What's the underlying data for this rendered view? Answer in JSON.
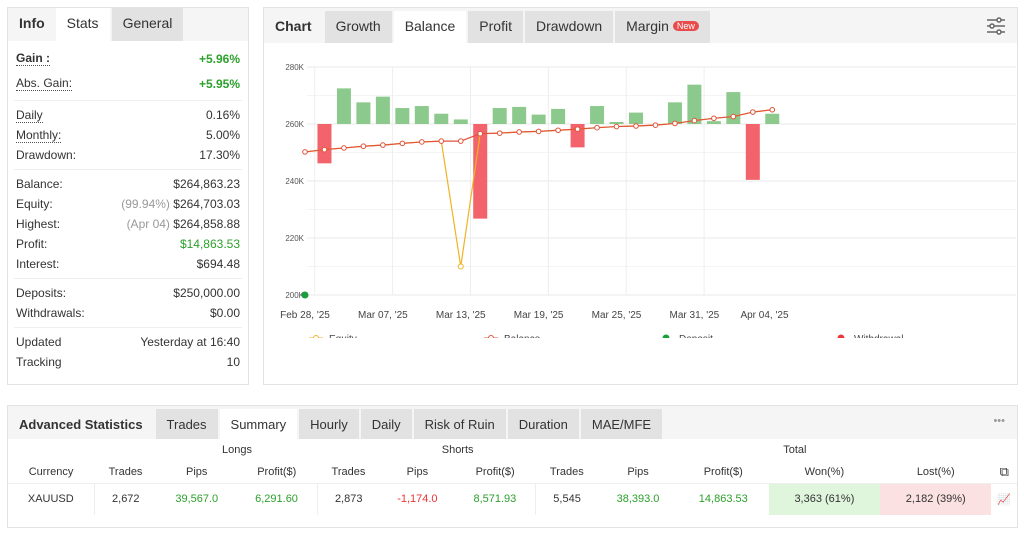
{
  "left": {
    "tabs": [
      "Info",
      "Stats",
      "General"
    ],
    "groups": [
      [
        {
          "label": "Gain :",
          "value": "+5.96%",
          "cls": "green",
          "bold": true
        },
        {
          "label": "Abs. Gain:",
          "value": "+5.95%",
          "cls": "green"
        }
      ],
      [
        {
          "label": "Daily",
          "value": "0.16%"
        },
        {
          "label": "Monthly:",
          "value": "5.00%"
        },
        {
          "label": "Drawdown:",
          "value": "17.30%"
        }
      ],
      [
        {
          "label": "Balance:",
          "value": "$264,863.23"
        },
        {
          "label": "Equity:",
          "pre": "(99.94%)",
          "value": "$264,703.03"
        },
        {
          "label": "Highest:",
          "pre": "(Apr 04)",
          "value": "$264,858.88"
        },
        {
          "label": "Profit:",
          "value": "$14,863.53",
          "cls": "green"
        },
        {
          "label": "Interest:",
          "value": "$694.48"
        }
      ],
      [
        {
          "label": "Deposits:",
          "value": "$250,000.00"
        },
        {
          "label": "Withdrawals:",
          "value": "$0.00"
        }
      ],
      [
        {
          "label": "Updated",
          "value": "Yesterday at 16:40"
        },
        {
          "label": "Tracking",
          "value": "10"
        }
      ]
    ]
  },
  "chart_panel": {
    "title": "Chart",
    "tabs": [
      "Growth",
      "Balance",
      "Profit",
      "Drawdown",
      "Margin"
    ],
    "active_tab": "Balance",
    "new_badge": "New"
  },
  "chart_data": {
    "type": "line",
    "ylim": [
      200,
      280
    ],
    "y_unit": "K",
    "yticks": [
      "280K",
      "260K",
      "240K",
      "220K",
      "200K"
    ],
    "xticks": [
      {
        "i": 0,
        "label": "Feb 28, '25"
      },
      {
        "i": 4,
        "label": "Mar 07, '25"
      },
      {
        "i": 8,
        "label": "Mar 13, '25"
      },
      {
        "i": 12,
        "label": "Mar 19, '25"
      },
      {
        "i": 16,
        "label": "Mar 25, '25"
      },
      {
        "i": 20,
        "label": "Mar 31, '25"
      },
      {
        "i": 23.6,
        "label": "Apr 04, '25"
      }
    ],
    "balance": [
      250.2,
      251,
      251.6,
      252.2,
      252.6,
      253.2,
      253.7,
      254,
      254,
      256.6,
      256.8,
      257.2,
      257.4,
      257.8,
      258.2,
      258.7,
      259.1,
      259.3,
      259.6,
      260.2,
      261.2,
      262,
      262.6,
      264.2,
      265
    ],
    "equity": [
      250.2,
      251,
      251.6,
      252.2,
      252.6,
      253.2,
      253.7,
      254,
      210,
      256.6,
      256.8,
      257.2,
      257.4,
      257.8,
      258.2,
      258.7,
      259.1,
      259.3,
      259.6,
      260.2,
      261.2,
      262,
      262.6,
      264.2,
      265
    ],
    "bars": [
      0,
      -13.8,
      12.5,
      7.6,
      9.6,
      5.6,
      6.3,
      3.6,
      1.6,
      -33.2,
      5.6,
      6,
      3.3,
      5.3,
      -8.2,
      6.3,
      0.7,
      4,
      0,
      7.6,
      13.8,
      1,
      11.2,
      -19.6,
      3.6
    ],
    "bar_base": 260,
    "deposit": {
      "i": 0,
      "value": 200
    },
    "legend": [
      "Equity",
      "Balance",
      "Deposit",
      "Withdrawal"
    ],
    "colors": {
      "equity": "#f0b323",
      "balance": "#e0543b",
      "pos": "#8cc98c",
      "neg": "#f2636b",
      "deposit": "#1a9e3a",
      "withdrawal": "#e83a3a"
    }
  },
  "adv": {
    "title": "Advanced Statistics",
    "tabs": [
      "Trades",
      "Summary",
      "Hourly",
      "Daily",
      "Risk of Ruin",
      "Duration",
      "MAE/MFE"
    ],
    "active_tab": "Summary",
    "more": "•••",
    "groups": [
      "Longs",
      "Shorts",
      "Total"
    ],
    "headers": [
      "Currency",
      "Trades",
      "Pips",
      "Profit($)",
      "Trades",
      "Pips",
      "Profit($)",
      "Trades",
      "Pips",
      "Profit($)",
      "Won(%)",
      "Lost(%)"
    ],
    "row": [
      "XAUUSD",
      "2,672",
      "39,567.0",
      "6,291.60",
      "2,873",
      "-1,174.0",
      "8,571.93",
      "5,545",
      "38,393.0",
      "14,863.53",
      "3,363 (61%)",
      "2,182 (39%)"
    ]
  }
}
